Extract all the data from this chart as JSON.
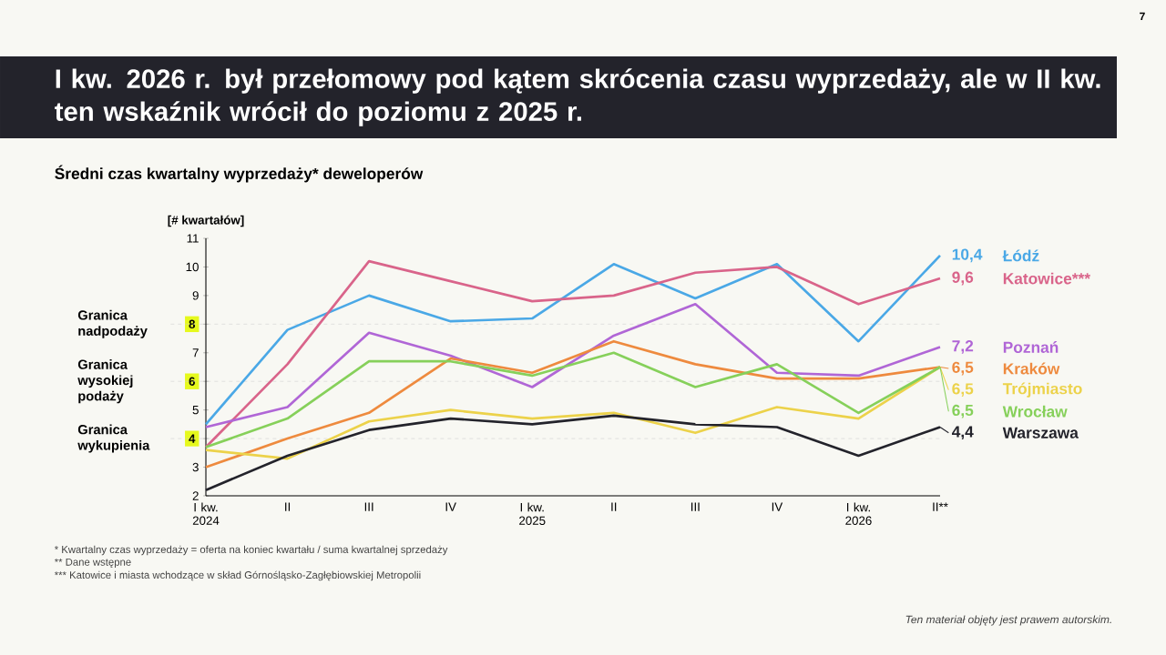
{
  "chart_data": {
    "type": "line",
    "title": "I kw. 2026 r. był przełomowy pod kątem skrócenia czasu wyprzedaży, ale w II kw. ten wskaźnik wrócił do poziomu z 2025 r.",
    "subtitle": "Średni czas kwartalny wyprzedaży* deweloperów",
    "ylabel": "[# kwartałów]",
    "categories": [
      "I kw. 2024",
      "II",
      "III",
      "IV",
      "I kw. 2025",
      "II",
      "III",
      "IV",
      "I kw. 2026",
      "II**"
    ],
    "ylim": [
      2,
      11
    ],
    "yticks": [
      2,
      3,
      4,
      5,
      6,
      7,
      8,
      9,
      10,
      11
    ],
    "series": [
      {
        "name": "Łódź",
        "color": "#4aa8e6",
        "values": [
          4.5,
          7.8,
          9.0,
          8.1,
          8.2,
          10.1,
          8.9,
          10.1,
          7.4,
          10.4
        ],
        "value_labels": [
          null,
          null,
          null,
          null,
          null,
          null,
          null,
          null,
          null,
          "10,4"
        ]
      },
      {
        "name": "Katowice***",
        "color": "#d9648a",
        "values": [
          3.7,
          6.6,
          10.2,
          9.5,
          8.8,
          9.0,
          9.8,
          10.0,
          8.7,
          9.6
        ],
        "value_labels": [
          null,
          null,
          null,
          null,
          null,
          null,
          null,
          null,
          null,
          "9,6"
        ]
      },
      {
        "name": "Poznań",
        "color": "#b066d6",
        "values": [
          4.4,
          5.1,
          7.7,
          6.9,
          5.8,
          7.6,
          8.7,
          6.3,
          6.2,
          7.2
        ],
        "value_labels": [
          null,
          null,
          null,
          null,
          null,
          null,
          null,
          null,
          null,
          "7,2"
        ]
      },
      {
        "name": "Kraków",
        "color": "#ee8a3e",
        "values": [
          3.0,
          4.0,
          4.9,
          6.8,
          6.3,
          7.4,
          6.6,
          6.1,
          6.1,
          6.5
        ],
        "value_labels": [
          null,
          null,
          null,
          null,
          null,
          null,
          null,
          null,
          null,
          "6,5"
        ]
      },
      {
        "name": "Trójmiasto",
        "color": "#ecd24a",
        "values": [
          3.6,
          3.3,
          4.6,
          5.0,
          4.7,
          4.9,
          4.2,
          5.1,
          4.7,
          6.5
        ],
        "value_labels": [
          null,
          null,
          null,
          null,
          null,
          null,
          null,
          null,
          null,
          "6,5"
        ]
      },
      {
        "name": "Wrocław",
        "color": "#86d05a",
        "values": [
          3.7,
          4.7,
          6.7,
          6.7,
          6.2,
          7.0,
          5.8,
          6.6,
          4.9,
          6.5
        ],
        "value_labels": [
          null,
          null,
          null,
          null,
          null,
          null,
          null,
          null,
          null,
          "6,5"
        ]
      },
      {
        "name": "Warszawa",
        "color": "#23232b",
        "values": [
          2.2,
          3.4,
          4.3,
          4.7,
          4.5,
          4.8,
          4.5,
          4.4,
          3.4,
          4.4
        ],
        "value_labels": [
          null,
          null,
          null,
          null,
          null,
          null,
          null,
          null,
          null,
          "4,4"
        ]
      }
    ],
    "ref_lines": [
      {
        "axis": "y",
        "value": 8,
        "label": "Granica nadpodaży",
        "color": "#cccccc",
        "line_style": "dashed"
      },
      {
        "axis": "y",
        "value": 6,
        "label": "Granica wysokiej podaży",
        "color": "#cccccc",
        "line_style": "dashed"
      },
      {
        "axis": "y",
        "value": 4,
        "label": "Granica wykupienia",
        "color": "#cccccc",
        "line_style": "dashed"
      }
    ],
    "annotations": [
      "* Kwartalny czas wyprzedaży = oferta na koniec kwartału / suma kwartalnej sprzedaży",
      "** Dane wstępne",
      "*** Katowice i miasta wchodzące w skład Górnośląsko-Zagłębiowskiej Metropolii",
      "7",
      "Ten materiał objęty jest prawem autorskim."
    ]
  }
}
